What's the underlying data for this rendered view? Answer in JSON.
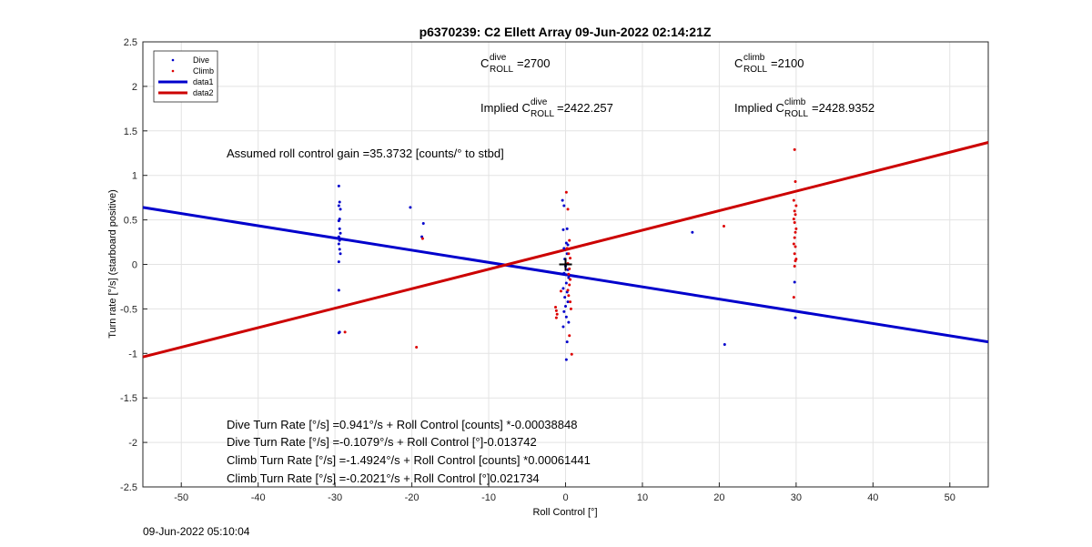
{
  "chart_data": {
    "type": "scatter",
    "title": "p6370239: C2 Ellett Array 09-Jun-2022 02:14:21Z",
    "xlabel": "Roll Control [°]",
    "ylabel": "Turn rate [°/s] (starboard positive)",
    "xlim": [
      -55,
      55
    ],
    "ylim": [
      -2.5,
      2.5
    ],
    "xticks": [
      -50,
      -40,
      -30,
      -20,
      -10,
      0,
      10,
      20,
      30,
      40,
      50
    ],
    "yticks": [
      -2.5,
      -2,
      -1.5,
      -1,
      -0.5,
      0,
      0.5,
      1,
      1.5,
      2,
      2.5
    ],
    "grid": true,
    "legend_position": "top-left",
    "series": [
      {
        "name": "Dive",
        "kind": "points",
        "color": "#0000cc",
        "x": [
          -29.5,
          -29.4,
          -29.5,
          -29.3,
          -29.4,
          -29.5,
          -29.4,
          -29.3,
          -29.5,
          -29.4,
          -29.5,
          -29.4,
          -29.3,
          -29.5,
          -29.5,
          -29.4,
          -29.5,
          -20.2,
          -18.5,
          -18.7,
          -0.4,
          -0.2,
          0.2,
          -0.3,
          0.1,
          0.3,
          -0.2,
          0.2,
          -0.1,
          0.0,
          0.3,
          -0.2,
          0.4,
          0.1,
          -0.3,
          0.2,
          -0.1,
          0.3,
          0.0,
          -0.2,
          0.1,
          0.4,
          -0.3,
          0.2,
          0.1,
          16.5,
          20.7,
          29.8,
          29.9
        ],
        "y": [
          0.88,
          0.7,
          0.66,
          0.62,
          0.51,
          0.49,
          0.4,
          0.35,
          0.31,
          0.27,
          0.23,
          0.17,
          0.12,
          0.03,
          -0.29,
          -0.76,
          -0.77,
          0.64,
          0.46,
          0.31,
          0.72,
          0.66,
          0.4,
          0.39,
          0.24,
          0.22,
          0.18,
          0.12,
          0.06,
          -0.02,
          -0.06,
          -0.1,
          -0.15,
          -0.21,
          -0.27,
          -0.31,
          -0.37,
          -0.42,
          -0.47,
          -0.53,
          -0.59,
          -0.65,
          -0.7,
          -0.87,
          -1.07,
          0.36,
          -0.9,
          -0.2,
          -0.6
        ]
      },
      {
        "name": "Climb",
        "kind": "points",
        "color": "#dd0000",
        "x": [
          -28.7,
          -19.4,
          -18.6,
          -1.3,
          -1.2,
          -1.1,
          -1.2,
          -0.6,
          0.1,
          0.3,
          0.5,
          0.2,
          0.4,
          0.6,
          0.3,
          0.5,
          0.4,
          0.6,
          0.5,
          0.3,
          0.4,
          0.6,
          0.7,
          0.5,
          0.8,
          20.6,
          29.8,
          29.9,
          29.7,
          30.0,
          29.8,
          29.9,
          29.7,
          29.8,
          30.0,
          29.9,
          29.8,
          29.7,
          29.9,
          29.8,
          30.0,
          29.9,
          29.8,
          29.7
        ],
        "y": [
          -0.76,
          -0.93,
          0.29,
          -0.48,
          -0.52,
          -0.56,
          -0.6,
          -0.3,
          0.81,
          0.62,
          0.27,
          0.18,
          0.12,
          0.07,
          0.01,
          -0.05,
          -0.11,
          -0.17,
          -0.23,
          -0.29,
          -0.35,
          -0.42,
          -0.5,
          -0.8,
          -1.01,
          0.43,
          1.29,
          0.93,
          0.72,
          0.66,
          0.6,
          0.56,
          0.51,
          0.47,
          0.4,
          0.36,
          0.3,
          0.23,
          0.2,
          0.12,
          0.06,
          0.04,
          -0.02,
          -0.37
        ]
      },
      {
        "name": "data1",
        "kind": "line",
        "color": "#0000cc",
        "x": [
          -55,
          55
        ],
        "y": [
          0.64,
          -0.87
        ]
      },
      {
        "name": "data2",
        "kind": "line",
        "color": "#cc0000",
        "x": [
          -55,
          55
        ],
        "y": [
          -1.04,
          1.37
        ]
      }
    ],
    "marker": {
      "x": 0,
      "y": 0,
      "symbol": "+"
    },
    "annotations": {
      "c_roll_dive_label": "C",
      "c_roll_dive_sup": "dive",
      "c_roll_dive_sub": "ROLL",
      "c_roll_dive_value": "=2700",
      "c_roll_climb_label": "C",
      "c_roll_climb_sup": "climb",
      "c_roll_climb_sub": "ROLL",
      "c_roll_climb_value": "=2100",
      "implied_dive_prefix": "Implied C",
      "implied_dive_sup": "dive",
      "implied_dive_sub": "ROLL",
      "implied_dive_value": "=2422.257",
      "implied_climb_prefix": "Implied C",
      "implied_climb_sup": "climb",
      "implied_climb_sub": "ROLL",
      "implied_climb_value": "=2428.9352",
      "gain_text": "Assumed roll control gain =35.3732 [counts/° to stbd]",
      "fit_lines": [
        "Dive Turn Rate [°/s] =0.941°/s + Roll Control [counts] *-0.00038848",
        "Dive Turn Rate [°/s] =-0.1079°/s + Roll Control [°]-0.013742",
        "Climb Turn Rate [°/s] =-1.4924°/s + Roll Control [counts] *0.00061441",
        "Climb Turn Rate [°/s] =-0.2021°/s + Roll Control [°]0.021734"
      ]
    }
  },
  "footer": {
    "timestamp": "09-Jun-2022 05:10:04"
  }
}
